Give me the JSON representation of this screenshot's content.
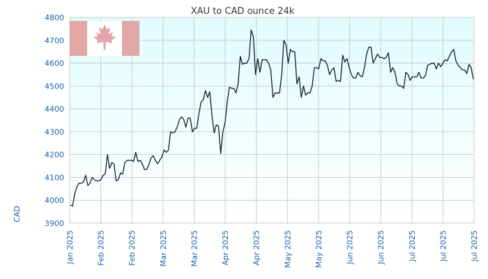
{
  "chart_data": {
    "type": "line",
    "title": "XAU to CAD ounce 24k",
    "subtitle": "",
    "xlabel": "",
    "ylabel": "CAD",
    "ylim": [
      3900,
      4800
    ],
    "yticks": [
      3900,
      4000,
      4100,
      4200,
      4300,
      4400,
      4500,
      4600,
      4700,
      4800
    ],
    "xtick_labels": [
      "Jan 2025",
      "Feb 2025",
      "Feb 2025",
      "Mar 2025",
      "Mar 2025",
      "Apr 2025",
      "Apr 2025",
      "May 2025",
      "May 2025",
      "Jun 2025",
      "Jun 2025",
      "Jul 2025",
      "Jul 2025",
      "Jul 2025"
    ],
    "grid": true,
    "legend": "none",
    "colors": {
      "line": "#0d1b2a",
      "plot_bg_top": "#e0fcfc",
      "plot_bg_bottom": "#ffffff",
      "grid": "#cccccc",
      "axis_text": "#1a5fb4",
      "flag_red": "#e3a6a6"
    },
    "flag_icon": "canada-flag",
    "series": [
      {
        "name": "",
        "values": [
          3980,
          3975,
          4030,
          4060,
          4075,
          4075,
          4080,
          4110,
          4065,
          4075,
          4100,
          4090,
          4085,
          4085,
          4090,
          4110,
          4115,
          4200,
          4140,
          4165,
          4160,
          4085,
          4090,
          4120,
          4115,
          4165,
          4175,
          4175,
          4175,
          4170,
          4210,
          4170,
          4175,
          4160,
          4135,
          4135,
          4155,
          4185,
          4195,
          4175,
          4160,
          4175,
          4190,
          4220,
          4210,
          4220,
          4300,
          4295,
          4300,
          4320,
          4350,
          4365,
          4355,
          4320,
          4360,
          4360,
          4300,
          4315,
          4315,
          4380,
          4430,
          4440,
          4480,
          4450,
          4475,
          4370,
          4295,
          4330,
          4325,
          4205,
          4300,
          4340,
          4430,
          4495,
          4490,
          4490,
          4470,
          4510,
          4630,
          4595,
          4600,
          4600,
          4620,
          4745,
          4715,
          4550,
          4620,
          4560,
          4615,
          4615,
          4615,
          4600,
          4570,
          4450,
          4470,
          4470,
          4470,
          4550,
          4700,
          4680,
          4600,
          4660,
          4650,
          4650,
          4510,
          4540,
          4450,
          4500,
          4460,
          4470,
          4470,
          4500,
          4580,
          4580,
          4575,
          4620,
          4610,
          4610,
          4590,
          4550,
          4570,
          4580,
          4520,
          4525,
          4520,
          4635,
          4605,
          4620,
          4580,
          4550,
          4535,
          4535,
          4560,
          4545,
          4540,
          4580,
          4640,
          4670,
          4670,
          4600,
          4620,
          4640,
          4625,
          4625,
          4620,
          4625,
          4645,
          4560,
          4580,
          4560,
          4510,
          4500,
          4500,
          4490,
          4560,
          4550,
          4525,
          4540,
          4540,
          4540,
          4560,
          4535,
          4535,
          4545,
          4590,
          4595,
          4600,
          4600,
          4575,
          4600,
          4585,
          4600,
          4615,
          4610,
          4630,
          4650,
          4660,
          4610,
          4590,
          4580,
          4570,
          4570,
          4555,
          4595,
          4580,
          4530
        ]
      }
    ]
  }
}
